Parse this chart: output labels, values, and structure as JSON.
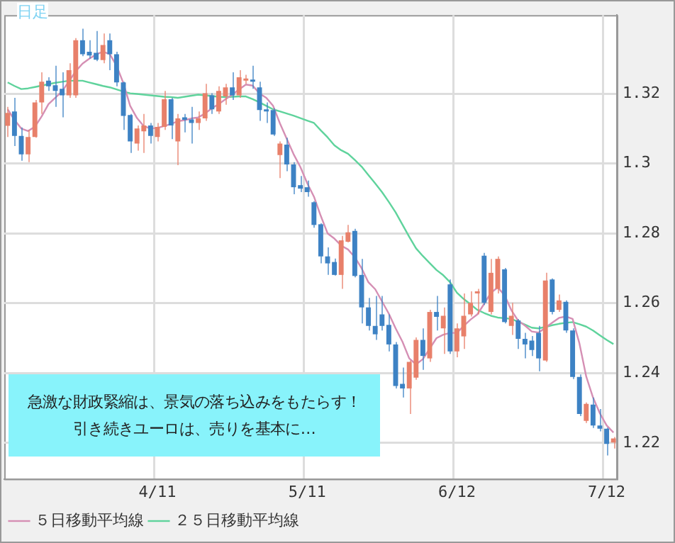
{
  "chart_data": {
    "type": "candlestick",
    "categories": [
      null,
      null,
      null,
      null,
      null,
      null,
      null,
      null,
      null,
      null,
      null,
      null,
      null,
      null,
      null,
      null,
      null,
      null,
      null,
      null,
      null,
      null,
      "4/11",
      null,
      null,
      null,
      null,
      null,
      null,
      null,
      null,
      null,
      null,
      null,
      null,
      null,
      null,
      null,
      null,
      null,
      null,
      null,
      null,
      null,
      "5/11",
      null,
      null,
      null,
      null,
      null,
      null,
      null,
      null,
      null,
      null,
      null,
      null,
      null,
      null,
      null,
      null,
      null,
      null,
      null,
      null,
      null,
      "6/12",
      null,
      null,
      null,
      null,
      null,
      null,
      null,
      null,
      null,
      null,
      null,
      null,
      null,
      null,
      null,
      null,
      null,
      null,
      null,
      null,
      null,
      "7/12",
      null
    ],
    "ohlc": [
      [
        1.3108,
        1.3162,
        1.3076,
        1.3145
      ],
      [
        1.3149,
        1.3188,
        1.305,
        1.3079
      ],
      [
        1.3079,
        1.3103,
        1.3008,
        1.3026
      ],
      [
        1.3026,
        1.3096,
        1.3004,
        1.3076
      ],
      [
        1.3076,
        1.3182,
        1.3074,
        1.3175
      ],
      [
        1.3175,
        1.3261,
        1.3142,
        1.3234
      ],
      [
        1.3237,
        1.3247,
        1.3208,
        1.3221
      ],
      [
        1.3224,
        1.328,
        1.3162,
        1.3208
      ],
      [
        1.3214,
        1.3261,
        1.3132,
        1.3195
      ],
      [
        1.3195,
        1.3287,
        1.3188,
        1.3267
      ],
      [
        1.3195,
        1.3359,
        1.3188,
        1.3353
      ],
      [
        1.3353,
        1.3386,
        1.3307,
        1.3313
      ],
      [
        1.332,
        1.3353,
        1.33,
        1.3309
      ],
      [
        1.3317,
        1.3379,
        1.3293,
        1.3297
      ],
      [
        1.3296,
        1.3372,
        1.3287,
        1.3339
      ],
      [
        1.3353,
        1.3372,
        1.3267,
        1.3313
      ],
      [
        1.3313,
        1.332,
        1.3221,
        1.3232
      ],
      [
        1.3232,
        1.3234,
        1.3096,
        1.3136
      ],
      [
        1.3139,
        1.3142,
        1.303,
        1.3063
      ],
      [
        1.3057,
        1.3109,
        1.3037,
        1.31
      ],
      [
        1.3092,
        1.3142,
        1.303,
        1.3109
      ],
      [
        1.3109,
        1.3116,
        1.3057,
        1.3079
      ],
      [
        1.3076,
        1.3116,
        1.3063,
        1.3105
      ],
      [
        1.3105,
        1.3208,
        1.3096,
        1.3184
      ],
      [
        1.3184,
        1.3188,
        1.307,
        1.3109
      ],
      [
        1.3063,
        1.3142,
        1.2995,
        1.3129
      ],
      [
        1.3132,
        1.3142,
        1.3089,
        1.3125
      ],
      [
        1.3126,
        1.3162,
        1.3057,
        1.3116
      ],
      [
        1.3116,
        1.3149,
        1.3096,
        1.3129
      ],
      [
        1.3129,
        1.3228,
        1.3122,
        1.3201
      ],
      [
        1.3195,
        1.3201,
        1.3142,
        1.3155
      ],
      [
        1.3149,
        1.3221,
        1.3142,
        1.3208
      ],
      [
        1.3192,
        1.3228,
        1.3168,
        1.3218
      ],
      [
        1.3218,
        1.3261,
        1.3182,
        1.3195
      ],
      [
        1.3195,
        1.3267,
        1.3188,
        1.3247
      ],
      [
        1.3237,
        1.3254,
        1.3228,
        1.3241
      ],
      [
        1.3238,
        1.328,
        1.3214,
        1.3234
      ],
      [
        1.3218,
        1.3234,
        1.3122,
        1.3153
      ],
      [
        1.3153,
        1.3175,
        1.3116,
        1.3149
      ],
      [
        1.3153,
        1.3158,
        1.3079,
        1.3083
      ],
      [
        1.3024,
        1.3063,
        1.2958,
        1.3057
      ],
      [
        1.3054,
        1.3074,
        1.2978,
        1.2997
      ],
      [
        1.2997,
        1.3004,
        1.2912,
        1.2932
      ],
      [
        1.2938,
        1.2964,
        1.2918,
        1.2928
      ],
      [
        1.2932,
        1.2951,
        1.2905,
        1.2918
      ],
      [
        1.2889,
        1.2892,
        1.2816,
        1.2824
      ],
      [
        1.2826,
        1.2829,
        1.2714,
        1.2734
      ],
      [
        1.2734,
        1.276,
        1.2681,
        1.2714
      ],
      [
        1.2718,
        1.2728,
        1.2679,
        1.2681
      ],
      [
        1.2681,
        1.2793,
        1.2641,
        1.278
      ],
      [
        1.2776,
        1.2824,
        1.2774,
        1.2803
      ],
      [
        1.2807,
        1.2813,
        1.2674,
        1.2678
      ],
      [
        1.2681,
        1.2727,
        1.2542,
        1.2588
      ],
      [
        1.2588,
        1.2615,
        1.2522,
        1.2535
      ],
      [
        1.2535,
        1.2621,
        1.2495,
        1.2511
      ],
      [
        1.2568,
        1.2621,
        1.2522,
        1.2535
      ],
      [
        1.2538,
        1.2568,
        1.2462,
        1.2482
      ],
      [
        1.2482,
        1.2489,
        1.2356,
        1.2363
      ],
      [
        1.2369,
        1.2416,
        1.233,
        1.2356
      ],
      [
        1.2356,
        1.2436,
        1.2283,
        1.2432
      ],
      [
        1.2387,
        1.2502,
        1.2381,
        1.2495
      ],
      [
        1.2495,
        1.2528,
        1.2409,
        1.2449
      ],
      [
        1.2442,
        1.2581,
        1.2432,
        1.2575
      ],
      [
        1.2575,
        1.2621,
        1.2522,
        1.2561
      ],
      [
        1.2528,
        1.2588,
        1.2455,
        1.2564
      ],
      [
        1.2654,
        1.2668,
        1.2455,
        1.2462
      ],
      [
        1.2462,
        1.2542,
        1.2445,
        1.2528
      ],
      [
        1.2505,
        1.2628,
        1.2469,
        1.2564
      ],
      [
        1.2568,
        1.2634,
        1.2562,
        1.2601
      ],
      [
        1.2628,
        1.2641,
        1.2568,
        1.2634
      ],
      [
        1.2736,
        1.2744,
        1.2595,
        1.2601
      ],
      [
        1.2575,
        1.2727,
        1.2568,
        1.2687
      ],
      [
        1.2641,
        1.2734,
        1.2628,
        1.2727
      ],
      [
        1.2697,
        1.2701,
        1.2542,
        1.2546
      ],
      [
        1.2535,
        1.2601,
        1.2509,
        1.2564
      ],
      [
        1.2551,
        1.2555,
        1.2469,
        1.2498
      ],
      [
        1.2498,
        1.2515,
        1.2442,
        1.2482
      ],
      [
        1.2493,
        1.2506,
        1.2449,
        1.2466
      ],
      [
        1.2515,
        1.2535,
        1.2405,
        1.2442
      ],
      [
        1.2436,
        1.2687,
        1.2432,
        1.2665
      ],
      [
        1.2668,
        1.2671,
        1.2568,
        1.2575
      ],
      [
        1.2581,
        1.2625,
        1.2575,
        1.2608
      ],
      [
        1.2604,
        1.2608,
        1.2515,
        1.2522
      ],
      [
        1.2522,
        1.2528,
        1.2383,
        1.2389
      ],
      [
        1.2389,
        1.2396,
        1.2277,
        1.2283
      ],
      [
        1.2263,
        1.2316,
        1.2257,
        1.2312
      ],
      [
        1.231,
        1.233,
        1.2243,
        1.225
      ],
      [
        1.225,
        1.2297,
        1.2233,
        1.2241
      ],
      [
        1.2241,
        1.2244,
        1.2164,
        1.2197
      ],
      [
        1.2201,
        1.2217,
        1.2184,
        1.2213
      ]
    ],
    "colors": [
      "#e8806a",
      "#3d82c4",
      "#3d82c4",
      "#e8806a",
      "#e8806a",
      "#e8806a",
      "#3d82c4",
      "#3d82c4",
      "#3d82c4",
      "#e8806a",
      "#e8806a",
      "#3d82c4",
      "#3d82c4",
      "#3d82c4",
      "#e8806a",
      "#3d82c4",
      "#3d82c4",
      "#3d82c4",
      "#3d82c4",
      "#e8806a",
      "#e8806a",
      "#3d82c4",
      "#e8806a",
      "#e8806a",
      "#3d82c4",
      "#e8806a",
      "#3d82c4",
      "#3d82c4",
      "#e8806a",
      "#e8806a",
      "#3d82c4",
      "#e8806a",
      "#e8806a",
      "#3d82c4",
      "#e8806a",
      "#e8806a",
      "#3d82c4",
      "#3d82c4",
      "#3d82c4",
      "#3d82c4",
      "#e8806a",
      "#3d82c4",
      "#3d82c4",
      "#3d82c4",
      "#3d82c4",
      "#3d82c4",
      "#3d82c4",
      "#3d82c4",
      "#3d82c4",
      "#e8806a",
      "#e8806a",
      "#3d82c4",
      "#3d82c4",
      "#3d82c4",
      "#3d82c4",
      "#3d82c4",
      "#3d82c4",
      "#3d82c4",
      "#3d82c4",
      "#e8806a",
      "#e8806a",
      "#3d82c4",
      "#e8806a",
      "#3d82c4",
      "#e8806a",
      "#3d82c4",
      "#e8806a",
      "#e8806a",
      "#e8806a",
      "#e8806a",
      "#3d82c4",
      "#e8806a",
      "#e8806a",
      "#3d82c4",
      "#e8806a",
      "#3d82c4",
      "#3d82c4",
      "#3d82c4",
      "#3d82c4",
      "#e8806a",
      "#3d82c4",
      "#e8806a",
      "#3d82c4",
      "#3d82c4",
      "#3d82c4",
      "#e8806a",
      "#3d82c4",
      "#3d82c4",
      "#3d82c4",
      "#e8806a"
    ],
    "series": [
      {
        "name": "５日移動平均線",
        "type": "line",
        "color": "#d58fb4",
        "values": [
          1.3155,
          1.3125,
          1.31,
          1.3093,
          1.3105,
          1.3135,
          1.317,
          1.3188,
          1.3207,
          1.3235,
          1.3264,
          1.3286,
          1.33,
          1.3312,
          1.332,
          1.3313,
          1.328,
          1.323,
          1.3165,
          1.313,
          1.3107,
          1.31,
          1.3102,
          1.3107,
          1.3113,
          1.3121,
          1.3124,
          1.3129,
          1.3132,
          1.3143,
          1.3158,
          1.317,
          1.3184,
          1.3197,
          1.3212,
          1.3226,
          1.3223,
          1.32,
          1.3188,
          1.3165,
          1.3115,
          1.3071,
          1.3027,
          1.299,
          1.2944,
          1.2905,
          1.285,
          1.28,
          1.2785,
          1.2765,
          1.2754,
          1.2732,
          1.27,
          1.266,
          1.264,
          1.2605,
          1.257,
          1.2528,
          1.249,
          1.2442,
          1.2425,
          1.244,
          1.247,
          1.25,
          1.251,
          1.2515,
          1.2515,
          1.2535,
          1.2553,
          1.2568,
          1.2598,
          1.263,
          1.2645,
          1.2623,
          1.258,
          1.255,
          1.2536,
          1.2519,
          1.2516,
          1.253,
          1.2544,
          1.2558,
          1.2562,
          1.2555,
          1.2485,
          1.239,
          1.233,
          1.2285,
          1.225,
          1.223
        ]
      },
      {
        "name": "２５日移動平均線",
        "type": "line",
        "color": "#5fd39c",
        "values": [
          1.3232,
          1.3222,
          1.3213,
          1.3215,
          1.3219,
          1.3223,
          1.3227,
          1.3231,
          1.3234,
          1.3237,
          1.3237,
          1.3237,
          1.3232,
          1.3227,
          1.3222,
          1.3218,
          1.3212,
          1.3206,
          1.3201,
          1.3199,
          1.3197,
          1.3195,
          1.3193,
          1.3191,
          1.319,
          1.3188,
          1.3191,
          1.3194,
          1.3197,
          1.3195,
          1.3193,
          1.3191,
          1.319,
          1.3191,
          1.3192,
          1.3192,
          1.3184,
          1.3175,
          1.3165,
          1.3155,
          1.3149,
          1.3143,
          1.3137,
          1.313,
          1.3123,
          1.3116,
          1.3095,
          1.3075,
          1.3052,
          1.3038,
          1.3028,
          1.301,
          1.2991,
          1.2967,
          1.2943,
          1.2918,
          1.289,
          1.286,
          1.2825,
          1.279,
          1.2757,
          1.2735,
          1.2715,
          1.2695,
          1.268,
          1.266,
          1.263,
          1.2612,
          1.2597,
          1.2581,
          1.2572,
          1.2564,
          1.2559,
          1.2557,
          1.2555,
          1.2547,
          1.2539,
          1.253,
          1.2528,
          1.2532,
          1.2537,
          1.2541,
          1.2544,
          1.2546,
          1.254,
          1.2533,
          1.2522,
          1.2508,
          1.2495,
          1.2483
        ]
      }
    ],
    "ylim": [
      1.2097,
      1.3425
    ],
    "yticks": [
      1.22,
      1.24,
      1.26,
      1.28,
      1.3,
      1.32
    ],
    "grid": true,
    "legend": "bottom left",
    "marker": "none",
    "annotations": [
      "日足",
      "急激な財政緊縮は、景気の落ち込みをもたらす！",
      "引き続きユーロは、売りを基本に…"
    ]
  }
}
